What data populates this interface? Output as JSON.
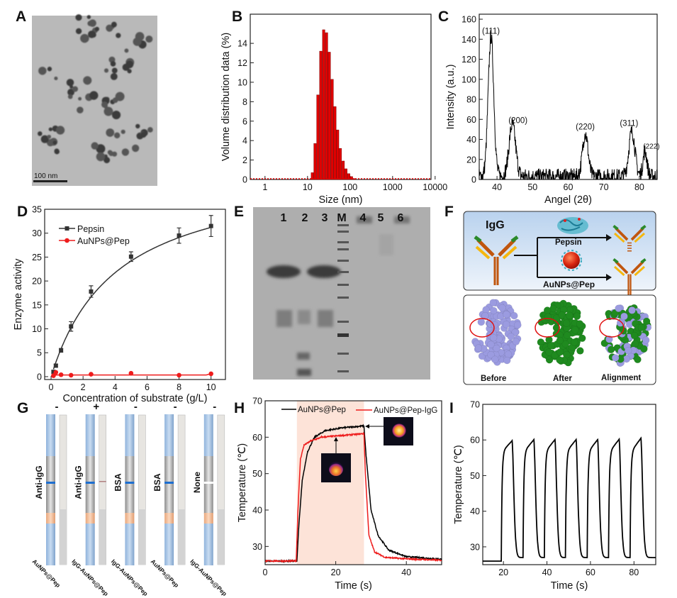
{
  "panel_labels": {
    "A": "A",
    "B": "B",
    "C": "C",
    "D": "D",
    "E": "E",
    "F": "F",
    "G": "G",
    "H": "H",
    "I": "I"
  },
  "panel_a": {
    "scale_bar": "100 nm"
  },
  "panel_e": {
    "lanes": [
      "1",
      "2",
      "3",
      "M",
      "4",
      "5",
      "6"
    ]
  },
  "panel_f": {
    "igg": "IgG",
    "pepsin": "Pepsin",
    "aunps_pep": "AuNPs@Pep",
    "before": "Before",
    "after": "After",
    "alignment": "Alignment",
    "colors": {
      "heavy": "#c0560f",
      "light": "#f5b70f",
      "variable": "#2b8a2b",
      "before": "#9b9be0",
      "after": "#1f8a1f",
      "circle": "#e01010"
    }
  },
  "panel_g": {
    "strips": [
      {
        "sign": "-",
        "capture": "Anti-IgG",
        "sample": "AuNPs@Pep",
        "line": true
      },
      {
        "sign": "+",
        "capture": "Anti-IgG",
        "sample": "IgG-AuNPs@Pep",
        "line": true
      },
      {
        "sign": "-",
        "capture": "BSA",
        "sample": "IgG-AuNPs@Pep",
        "line": true
      },
      {
        "sign": "-",
        "capture": "BSA",
        "sample": "AuNPs@Pep",
        "line": true
      },
      {
        "sign": "-",
        "capture": "None",
        "sample": "IgG-AuNPs@Pep",
        "line": false
      }
    ]
  },
  "chart_data": [
    {
      "panel": "B",
      "type": "bar",
      "xlabel": "Size (nm)",
      "ylabel": "Volume distribution data (%)",
      "xscale": "log",
      "xlim": [
        0.45,
        8000
      ],
      "ylim": [
        0,
        17
      ],
      "xticks": [
        "1",
        "10",
        "100",
        "1000",
        "10000"
      ],
      "yticks": [
        "0",
        "2",
        "4",
        "6",
        "8",
        "10",
        "12",
        "14"
      ],
      "color": "#e00000",
      "x": [
        13,
        15,
        17.5,
        20.5,
        24,
        28,
        32.5,
        38,
        44,
        51,
        59,
        69,
        80,
        93,
        108,
        126
      ],
      "values": [
        0.7,
        3.7,
        8.7,
        13.2,
        15.4,
        15.1,
        13.1,
        10.3,
        7.5,
        5.1,
        3.2,
        1.9,
        1.1,
        0.6,
        0.3,
        0.1
      ]
    },
    {
      "panel": "C",
      "type": "line",
      "xlabel": "Angel (2θ)",
      "ylabel": "Intensity (a.u.)",
      "xlim": [
        35,
        85
      ],
      "ylim": [
        0,
        165
      ],
      "xticks": [
        "40",
        "50",
        "60",
        "70",
        "80"
      ],
      "yticks": [
        "0",
        "20",
        "40",
        "60",
        "80",
        "100",
        "120",
        "140",
        "160"
      ],
      "peaks": [
        {
          "label": "(111)",
          "x": 38.3,
          "y": 140
        },
        {
          "label": "(200)",
          "x": 44.3,
          "y": 52
        },
        {
          "label": "(220)",
          "x": 64.8,
          "y": 43
        },
        {
          "label": "(311)",
          "x": 77.9,
          "y": 45
        },
        {
          "label": "(222)",
          "x": 81.6,
          "y": 25
        }
      ]
    },
    {
      "panel": "D",
      "type": "scatter",
      "xlabel": "Concentration of substrate (g/L)",
      "ylabel": "Enzyme activity",
      "xlim": [
        -0.4,
        10.9
      ],
      "ylim": [
        -0.6,
        35
      ],
      "xticks": [
        "0",
        "2",
        "4",
        "6",
        "8",
        "10"
      ],
      "yticks": [
        "0",
        "5",
        "10",
        "15",
        "20",
        "25",
        "30",
        "35"
      ],
      "legend": "top-left",
      "series": [
        {
          "name": "Pepsin",
          "color": "#333333",
          "marker": "square",
          "x": [
            0.15,
            0.3,
            0.625,
            1.25,
            2.5,
            5,
            8,
            10
          ],
          "y": [
            1.0,
            2.3,
            5.5,
            10.5,
            17.8,
            25.1,
            29.5,
            31.5
          ],
          "error": [
            0.3,
            0.3,
            0.4,
            1.0,
            1.2,
            1.0,
            1.6,
            2.2
          ]
        },
        {
          "name": "AuNPs@Pep",
          "color": "#ee1c1c",
          "marker": "circle",
          "x": [
            0.15,
            0.3,
            0.625,
            1.25,
            2.5,
            5,
            8,
            10
          ],
          "y": [
            0.2,
            0.9,
            0.4,
            0.3,
            0.5,
            0.7,
            0.3,
            0.6
          ]
        }
      ]
    },
    {
      "panel": "H",
      "type": "line",
      "xlabel": "Time (s)",
      "ylabel": "Temperature (℃)",
      "xlim": [
        0,
        50
      ],
      "ylim": [
        25,
        70
      ],
      "xticks": [
        "0",
        "20",
        "40"
      ],
      "yticks": [
        "30",
        "40",
        "50",
        "60",
        "70"
      ],
      "laser_on": [
        9,
        28
      ],
      "highlight_color": "#fde3d8",
      "legend": "top",
      "series": [
        {
          "name": "AuNPs@Pep",
          "color": "#000000",
          "points": [
            [
              0,
              26
            ],
            [
              9,
              26
            ],
            [
              9.5,
              35
            ],
            [
              10.5,
              48
            ],
            [
              12,
              56
            ],
            [
              14,
              60
            ],
            [
              17,
              61.8
            ],
            [
              22,
              62.6
            ],
            [
              28,
              63.1
            ],
            [
              28.6,
              55
            ],
            [
              30,
              40
            ],
            [
              32,
              33
            ],
            [
              35,
              29
            ],
            [
              40,
              27.2
            ],
            [
              50,
              26.5
            ]
          ]
        },
        {
          "name": "AuNPs@Pep-IgG",
          "color": "#ee1c1c",
          "points": [
            [
              0,
              26
            ],
            [
              8.8,
              26
            ],
            [
              9.3,
              40
            ],
            [
              10,
              54
            ],
            [
              11,
              57.8
            ],
            [
              13,
              59
            ],
            [
              16,
              60
            ],
            [
              22,
              60.5
            ],
            [
              28,
              61
            ],
            [
              28.4,
              50
            ],
            [
              29.4,
              33
            ],
            [
              31,
              28.5
            ],
            [
              34,
              27
            ],
            [
              40,
              26.6
            ],
            [
              50,
              26.2
            ]
          ]
        }
      ]
    },
    {
      "panel": "I",
      "type": "line",
      "xlabel": "Time (s)",
      "ylabel": "Temperature (℃)",
      "xlim": [
        10.5,
        90
      ],
      "ylim": [
        25,
        70
      ],
      "xticks": [
        "20",
        "40",
        "60",
        "80"
      ],
      "yticks": [
        "30",
        "40",
        "50",
        "60",
        "70"
      ],
      "baseline": 26,
      "cycles": [
        {
          "on": 19,
          "off": 24,
          "peak": 59.8
        },
        {
          "on": 29,
          "off": 34,
          "peak": 60.1
        },
        {
          "on": 38.8,
          "off": 43.7,
          "peak": 60.1
        },
        {
          "on": 48.5,
          "off": 53.4,
          "peak": 60.1
        },
        {
          "on": 58.5,
          "off": 63.3,
          "peak": 60.1
        },
        {
          "on": 68.3,
          "off": 73.2,
          "peak": 60.2
        },
        {
          "on": 78.2,
          "off": 83.2,
          "peak": 60.5
        }
      ]
    }
  ]
}
